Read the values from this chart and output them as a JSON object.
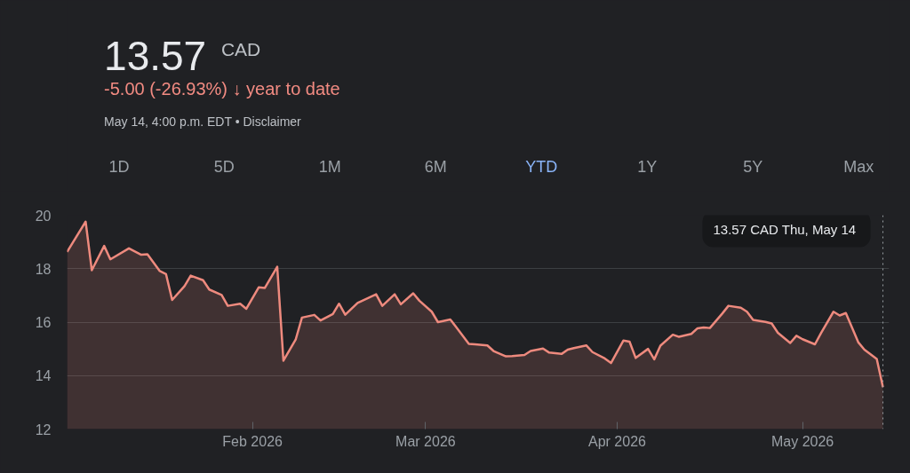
{
  "chart_data": {
    "type": "area",
    "title": "13.57",
    "subtitle": "CAD",
    "annotations": [
      "-5.00 (-26.93%) ↓ year to date",
      "May 14, 4:00 p.m. EDT • Disclaimer",
      "1D",
      "5D",
      "1M",
      "6M",
      "YTD",
      "1Y",
      "5Y",
      "Max",
      "13.57 CAD  Thu, May 14"
    ],
    "x": [
      "2026-01-02",
      "2026-01-05",
      "2026-01-06",
      "2026-01-08",
      "2026-01-09",
      "2026-01-12",
      "2026-01-14",
      "2026-01-15",
      "2026-01-17",
      "2026-01-18",
      "2026-01-19",
      "2026-01-21",
      "2026-01-22",
      "2026-01-24",
      "2026-01-25",
      "2026-01-27",
      "2026-01-28",
      "2026-01-30",
      "2026-01-31",
      "2026-02-02",
      "2026-02-03",
      "2026-02-05",
      "2026-02-06",
      "2026-02-08",
      "2026-02-09",
      "2026-02-11",
      "2026-02-12",
      "2026-02-14",
      "2026-02-15",
      "2026-02-16",
      "2026-02-18",
      "2026-02-20",
      "2026-02-21",
      "2026-02-22",
      "2026-02-24",
      "2026-02-25",
      "2026-02-27",
      "2026-02-28",
      "2026-03-02",
      "2026-03-03",
      "2026-03-05",
      "2026-03-06",
      "2026-03-08",
      "2026-03-09",
      "2026-03-11",
      "2026-03-12",
      "2026-03-14",
      "2026-03-15",
      "2026-03-17",
      "2026-03-18",
      "2026-03-20",
      "2026-03-21",
      "2026-03-23",
      "2026-03-24",
      "2026-03-25",
      "2026-03-27",
      "2026-03-28",
      "2026-03-30",
      "2026-03-31",
      "2026-04-02",
      "2026-04-03",
      "2026-04-04",
      "2026-04-06",
      "2026-04-07",
      "2026-04-08",
      "2026-04-10",
      "2026-04-11",
      "2026-04-13",
      "2026-04-14",
      "2026-04-15",
      "2026-04-16",
      "2026-04-18",
      "2026-04-19",
      "2026-04-21",
      "2026-04-22",
      "2026-04-23",
      "2026-04-25",
      "2026-04-26",
      "2026-04-27",
      "2026-04-29",
      "2026-04-30",
      "2026-05-01",
      "2026-05-03",
      "2026-05-04",
      "2026-05-06",
      "2026-05-07",
      "2026-05-08",
      "2026-05-10",
      "2026-05-11",
      "2026-05-13",
      "2026-05-14"
    ],
    "series": [
      {
        "color": "#ee8a7e",
        "values": [
          18.63,
          19.76,
          17.94,
          18.85,
          18.35,
          18.76,
          18.52,
          18.54,
          17.91,
          17.8,
          16.83,
          17.35,
          17.74,
          17.57,
          17.22,
          17.02,
          16.61,
          16.69,
          16.5,
          17.3,
          17.28,
          18.07,
          14.56,
          15.36,
          16.17,
          16.27,
          16.06,
          16.3,
          16.69,
          16.28,
          16.72,
          16.93,
          17.04,
          16.61,
          17.04,
          16.67,
          17.08,
          16.8,
          16.39,
          16.0,
          16.1,
          15.8,
          15.19,
          15.17,
          15.13,
          14.92,
          14.72,
          14.73,
          14.77,
          14.92,
          15.01,
          14.86,
          14.81,
          14.97,
          15.03,
          15.13,
          14.88,
          14.64,
          14.47,
          15.31,
          15.27,
          14.66,
          15.0,
          14.61,
          15.12,
          15.53,
          15.45,
          15.56,
          15.77,
          15.8,
          15.78,
          16.32,
          16.61,
          16.54,
          16.39,
          16.08,
          16.01,
          15.95,
          15.6,
          15.22,
          15.49,
          15.36,
          15.17,
          15.6,
          16.39,
          16.25,
          16.34,
          15.25,
          14.97,
          14.62,
          13.57
        ]
      }
    ],
    "xlim": [
      "2026-01-02",
      "2026-05-15"
    ],
    "xticks": [
      {
        "value": "2026-02-01",
        "label": "Feb 2026"
      },
      {
        "value": "2026-03-01",
        "label": "Mar 2026"
      },
      {
        "value": "2026-04-01",
        "label": "Apr 2026"
      },
      {
        "value": "2026-05-01",
        "label": "May 2026"
      }
    ],
    "ylim": [
      12,
      20
    ],
    "yticks": [
      12,
      14,
      16,
      18,
      20
    ],
    "grid": "y",
    "marker": "none",
    "line_style": "solid",
    "ref_lines": [
      {
        "axis": "x",
        "value": "2026-05-14",
        "color": "#9aa0a6",
        "line_style": "dotted"
      }
    ]
  }
}
